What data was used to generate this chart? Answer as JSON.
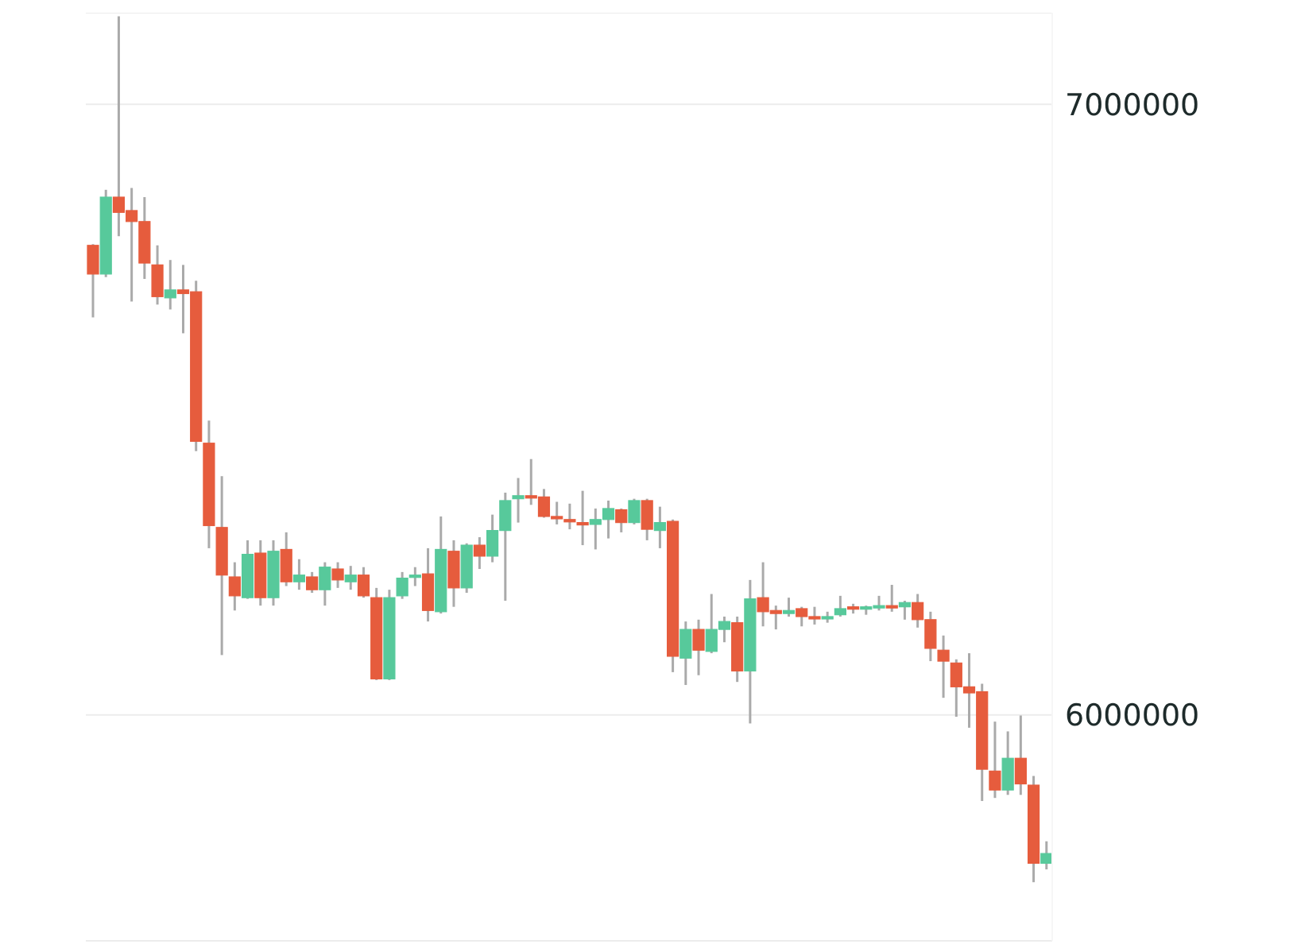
{
  "chart_data": {
    "type": "candlestick",
    "categories": [
      null,
      null,
      null,
      null,
      null,
      null,
      null,
      null,
      null,
      null,
      null,
      null,
      null,
      null,
      null,
      null,
      null,
      null,
      null,
      null,
      null,
      null,
      null,
      null,
      null,
      null,
      null,
      null,
      null,
      null,
      null,
      null,
      null,
      null,
      null,
      null,
      null,
      null,
      null,
      null,
      null,
      null,
      null,
      null,
      null,
      null,
      null,
      null,
      null,
      null,
      null,
      null,
      null,
      null,
      null,
      null,
      null,
      null,
      null,
      null,
      null,
      null,
      null,
      null,
      null,
      null,
      null,
      null,
      null,
      null,
      null,
      null,
      null,
      null,
      null
    ],
    "ohlc": [
      [
        6769000,
        6771000,
        6651000,
        6722000
      ],
      [
        6722000,
        6860000,
        6717000,
        6848000
      ],
      [
        6848000,
        7144000,
        6784000,
        6823000
      ],
      [
        6826000,
        6863000,
        6677000,
        6808000
      ],
      [
        6808000,
        6848000,
        6714000,
        6740000
      ],
      [
        6737000,
        6769000,
        6672000,
        6685000
      ],
      [
        6683000,
        6745000,
        6664000,
        6696000
      ],
      [
        6696000,
        6737000,
        6625000,
        6690000
      ],
      [
        6693000,
        6711000,
        6432000,
        6448000
      ],
      [
        6445000,
        6482000,
        6273000,
        6310000
      ],
      [
        6307000,
        6391000,
        6098000,
        6229000
      ],
      [
        6226000,
        6250000,
        6171000,
        6195000
      ],
      [
        6192000,
        6286000,
        6190000,
        6263000
      ],
      [
        6265000,
        6286000,
        6179000,
        6192000
      ],
      [
        6192000,
        6286000,
        6179000,
        6268000
      ],
      [
        6271000,
        6299000,
        6211000,
        6218000
      ],
      [
        6218000,
        6255000,
        6205000,
        6229000
      ],
      [
        6226000,
        6234000,
        6200000,
        6205000
      ],
      [
        6205000,
        6250000,
        6179000,
        6242000
      ],
      [
        6239000,
        6250000,
        6208000,
        6221000
      ],
      [
        6218000,
        6244000,
        6205000,
        6229000
      ],
      [
        6229000,
        6242000,
        6192000,
        6195000
      ],
      [
        6192000,
        6208000,
        6057000,
        6059000
      ],
      [
        6059000,
        6205000,
        6057000,
        6192000
      ],
      [
        6195000,
        6234000,
        6190000,
        6224000
      ],
      [
        6226000,
        6242000,
        6211000,
        6229000
      ],
      [
        6231000,
        6273000,
        6153000,
        6171000
      ],
      [
        6169000,
        6325000,
        6166000,
        6271000
      ],
      [
        6268000,
        6286000,
        6177000,
        6208000
      ],
      [
        6208000,
        6281000,
        6200000,
        6278000
      ],
      [
        6278000,
        6291000,
        6239000,
        6260000
      ],
      [
        6260000,
        6328000,
        6250000,
        6302000
      ],
      [
        6302000,
        6364000,
        6187000,
        6351000
      ],
      [
        6354000,
        6388000,
        6315000,
        6359000
      ],
      [
        6359000,
        6419000,
        6344000,
        6357000
      ],
      [
        6357000,
        6370000,
        6323000,
        6325000
      ],
      [
        6325000,
        6349000,
        6312000,
        6323000
      ],
      [
        6320000,
        6346000,
        6304000,
        6317000
      ],
      [
        6315000,
        6367000,
        6278000,
        6312000
      ],
      [
        6312000,
        6338000,
        6271000,
        6320000
      ],
      [
        6320000,
        6351000,
        6289000,
        6338000
      ],
      [
        6336000,
        6338000,
        6299000,
        6315000
      ],
      [
        6315000,
        6354000,
        6312000,
        6351000
      ],
      [
        6351000,
        6354000,
        6286000,
        6304000
      ],
      [
        6302000,
        6341000,
        6273000,
        6315000
      ],
      [
        6317000,
        6320000,
        6070000,
        6096000
      ],
      [
        6093000,
        6153000,
        6049000,
        6140000
      ],
      [
        6140000,
        6156000,
        6065000,
        6106000
      ],
      [
        6104000,
        6198000,
        6101000,
        6140000
      ],
      [
        6140000,
        6161000,
        6119000,
        6153000
      ],
      [
        6151000,
        6161000,
        6054000,
        6072000
      ],
      [
        6072000,
        6221000,
        5986000,
        6190000
      ],
      [
        6192000,
        6250000,
        6145000,
        6169000
      ],
      [
        6171000,
        6179000,
        6140000,
        6166000
      ],
      [
        6166000,
        6192000,
        6161000,
        6171000
      ],
      [
        6174000,
        6177000,
        6145000,
        6161000
      ],
      [
        6161000,
        6177000,
        6148000,
        6158000
      ],
      [
        6158000,
        6169000,
        6151000,
        6161000
      ],
      [
        6164000,
        6195000,
        6161000,
        6174000
      ],
      [
        6177000,
        6182000,
        6166000,
        6174000
      ],
      [
        6174000,
        6179000,
        6164000,
        6177000
      ],
      [
        6177000,
        6195000,
        6171000,
        6179000
      ],
      [
        6179000,
        6213000,
        6169000,
        6177000
      ],
      [
        6177000,
        6187000,
        6156000,
        6184000
      ],
      [
        6184000,
        6198000,
        6143000,
        6156000
      ],
      [
        6156000,
        6169000,
        6088000,
        6109000
      ],
      [
        6106000,
        6130000,
        6028000,
        6088000
      ],
      [
        6085000,
        6091000,
        5997000,
        6046000
      ],
      [
        6046000,
        6101000,
        5979000,
        6036000
      ],
      [
        6038000,
        6051000,
        5859000,
        5911000
      ],
      [
        5908000,
        5989000,
        5864000,
        5877000
      ],
      [
        5877000,
        5973000,
        5869000,
        5929000
      ],
      [
        5929000,
        5999000,
        5869000,
        5887000
      ],
      [
        5885000,
        5900000,
        5726000,
        5757000
      ],
      [
        5757000,
        5793000,
        5747000,
        5773000
      ]
    ],
    "ylim": [
      5630000,
      7150000
    ],
    "yticks": [
      6000000,
      7000000
    ],
    "grid": "y",
    "tick_labels": "y"
  }
}
